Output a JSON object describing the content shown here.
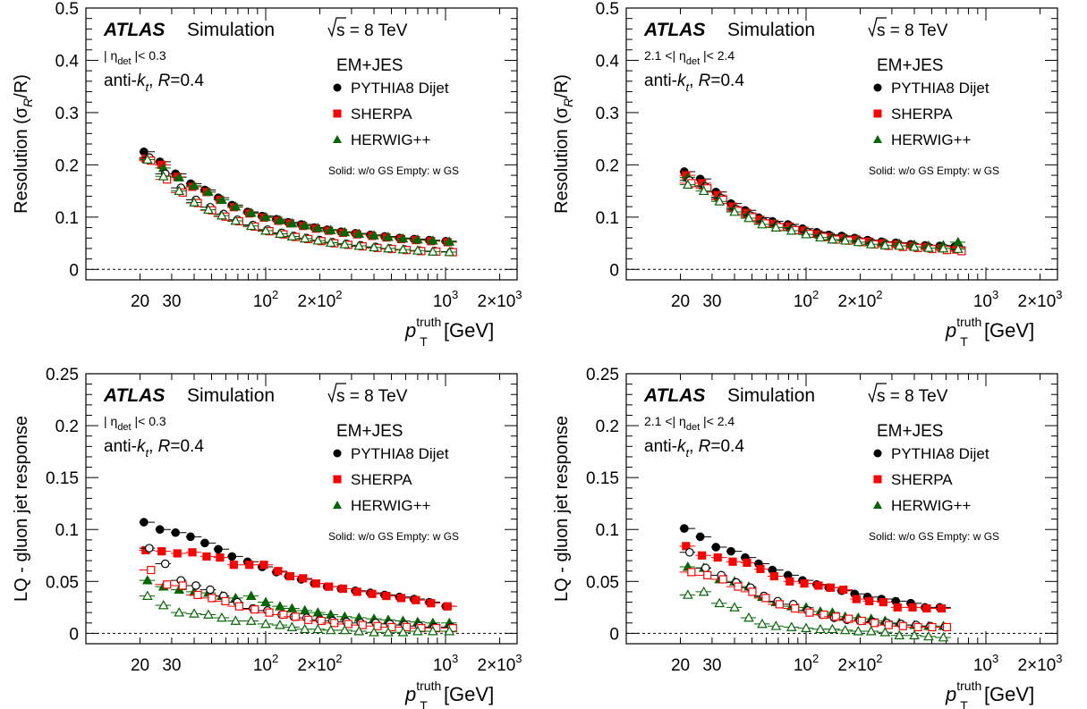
{
  "labels": {
    "atlas": "ATLAS",
    "simulation": "Simulation",
    "sqrt_s": "s = 8 TeV",
    "calib": "EM+JES",
    "jet_def_pre": "anti-k",
    "jet_def_sub": "t",
    "jet_def_post": ", R=0.4",
    "x_title": "p",
    "x_title_sup": "truth",
    "x_title_sub": "T",
    "x_title_unit": " [GeV]",
    "legend_note": "Solid: w/o GS  Empty: w GS",
    "eta_central_pre": "| η",
    "eta_central_sub": "det",
    "eta_central_post": " |< 0.3",
    "eta_forward_pre": "2.1 <| η",
    "eta_forward_sub": "det",
    "eta_forward_post": " |< 2.4",
    "y_title_resolution": "Resolution (σ",
    "y_title_resolution_sub": "R",
    "y_title_resolution_post": "/R)",
    "y_title_response": "LQ - gluon jet response"
  },
  "legend": [
    {
      "name": "PYTHIA8 Dijet",
      "color": "#000000",
      "marker": "circle"
    },
    {
      "name": "SHERPA",
      "color": "#ff0000",
      "marker": "square"
    },
    {
      "name": "HERWIG++",
      "color": "#006600",
      "marker": "triangle"
    }
  ],
  "x_ticks": [
    {
      "value": 20,
      "label": "20"
    },
    {
      "value": 30,
      "label": "30"
    },
    {
      "value": 100,
      "label": "10",
      "sup": "2"
    },
    {
      "value": 200,
      "label": "2×10",
      "sup": "2"
    },
    {
      "value": 1000,
      "label": "10",
      "sup": "3"
    },
    {
      "value": 2000,
      "label": "2×10",
      "sup": "3"
    }
  ],
  "chart_data": [
    {
      "type": "scatter",
      "panel": "top-left",
      "x_scale": "log",
      "xlim": [
        10,
        2500
      ],
      "ylim": [
        -0.02,
        0.5
      ],
      "y_ticks": [
        0,
        0.1,
        0.2,
        0.3,
        0.4,
        0.5
      ],
      "y_tick_labels": [
        "0",
        "0.1",
        "0.2",
        "0.3",
        "0.4",
        "0.5"
      ],
      "eta_region": "central",
      "y_title": "resolution",
      "x": [
        22,
        27,
        33,
        40,
        48,
        57,
        68,
        83,
        100,
        120,
        140,
        165,
        195,
        230,
        275,
        330,
        400,
        480,
        580,
        700,
        850,
        1050
      ],
      "series": [
        {
          "name": "PYTHIA8 Dijet w/o GS",
          "fill": "solid",
          "values": [
            0.225,
            0.206,
            0.183,
            0.164,
            0.152,
            0.137,
            0.123,
            0.11,
            0.102,
            0.096,
            0.09,
            0.086,
            0.08,
            0.076,
            0.072,
            0.069,
            0.066,
            0.063,
            0.06,
            0.058,
            0.056,
            0.054
          ]
        },
        {
          "name": "SHERPA w/o GS",
          "fill": "solid",
          "values": [
            0.212,
            0.2,
            0.177,
            0.158,
            0.148,
            0.133,
            0.119,
            0.107,
            0.099,
            0.093,
            0.088,
            0.083,
            0.078,
            0.074,
            0.07,
            0.067,
            0.064,
            0.061,
            0.058,
            0.056,
            0.054,
            0.052
          ]
        },
        {
          "name": "HERWIG++ w/o GS",
          "fill": "solid",
          "values": [
            0.21,
            0.194,
            0.176,
            0.16,
            0.148,
            0.133,
            0.12,
            0.108,
            0.1,
            0.094,
            0.088,
            0.084,
            0.079,
            0.075,
            0.071,
            0.068,
            0.065,
            0.062,
            0.059,
            0.057,
            0.055,
            0.053
          ]
        },
        {
          "name": "PYTHIA8 Dijet w GS",
          "fill": "empty",
          "values": [
            0.214,
            0.183,
            0.156,
            0.133,
            0.119,
            0.106,
            0.095,
            0.085,
            0.076,
            0.07,
            0.064,
            0.06,
            0.056,
            0.052,
            0.049,
            0.046,
            0.043,
            0.04,
            0.038,
            0.036,
            0.035,
            0.034
          ]
        },
        {
          "name": "SHERPA w GS",
          "fill": "empty",
          "values": [
            0.208,
            0.172,
            0.147,
            0.127,
            0.113,
            0.101,
            0.092,
            0.082,
            0.073,
            0.067,
            0.062,
            0.058,
            0.054,
            0.05,
            0.047,
            0.044,
            0.041,
            0.039,
            0.037,
            0.035,
            0.034,
            0.033
          ]
        },
        {
          "name": "HERWIG++ w GS",
          "fill": "empty",
          "values": [
            0.21,
            0.178,
            0.15,
            0.128,
            0.114,
            0.103,
            0.093,
            0.083,
            0.074,
            0.068,
            0.063,
            0.059,
            0.055,
            0.051,
            0.048,
            0.045,
            0.042,
            0.04,
            0.038,
            0.036,
            0.034,
            0.033
          ]
        }
      ]
    },
    {
      "type": "scatter",
      "panel": "top-right",
      "x_scale": "log",
      "xlim": [
        10,
        2500
      ],
      "ylim": [
        -0.02,
        0.5
      ],
      "y_ticks": [
        0,
        0.1,
        0.2,
        0.3,
        0.4,
        0.5
      ],
      "y_tick_labels": [
        "0",
        "0.1",
        "0.2",
        "0.3",
        "0.4",
        "0.5"
      ],
      "eta_region": "forward",
      "y_title": "resolution",
      "x": [
        22,
        27,
        33,
        40,
        48,
        57,
        68,
        83,
        100,
        120,
        140,
        165,
        195,
        230,
        275,
        330,
        400,
        480,
        580,
        700
      ],
      "series": [
        {
          "name": "PYTHIA8 Dijet w/o GS",
          "fill": "solid",
          "values": [
            0.187,
            0.173,
            0.148,
            0.126,
            0.113,
            0.099,
            0.092,
            0.086,
            0.078,
            0.071,
            0.066,
            0.064,
            0.06,
            0.056,
            0.053,
            0.051,
            0.048,
            0.046,
            0.045,
            0.043
          ]
        },
        {
          "name": "SHERPA w/o GS",
          "fill": "solid",
          "values": [
            0.18,
            0.165,
            0.142,
            0.12,
            0.108,
            0.095,
            0.087,
            0.082,
            0.074,
            0.067,
            0.062,
            0.06,
            0.057,
            0.053,
            0.05,
            0.048,
            0.045,
            0.043,
            0.041,
            0.038
          ]
        },
        {
          "name": "HERWIG++ w/o GS",
          "fill": "solid",
          "values": [
            0.176,
            0.16,
            0.138,
            0.117,
            0.106,
            0.093,
            0.086,
            0.08,
            0.072,
            0.066,
            0.062,
            0.06,
            0.056,
            0.052,
            0.05,
            0.049,
            0.047,
            0.045,
            0.046,
            0.052
          ]
        },
        {
          "name": "PYTHIA8 Dijet w GS",
          "fill": "empty",
          "values": [
            0.17,
            0.158,
            0.136,
            0.115,
            0.103,
            0.091,
            0.084,
            0.078,
            0.071,
            0.064,
            0.059,
            0.057,
            0.054,
            0.05,
            0.047,
            0.045,
            0.043,
            0.041,
            0.04,
            0.038
          ]
        },
        {
          "name": "SHERPA w GS",
          "fill": "empty",
          "values": [
            0.165,
            0.155,
            0.133,
            0.112,
            0.1,
            0.088,
            0.081,
            0.075,
            0.068,
            0.062,
            0.057,
            0.055,
            0.052,
            0.048,
            0.045,
            0.043,
            0.041,
            0.039,
            0.037,
            0.035
          ]
        },
        {
          "name": "HERWIG++ w GS",
          "fill": "empty",
          "values": [
            0.162,
            0.15,
            0.13,
            0.11,
            0.098,
            0.086,
            0.08,
            0.074,
            0.067,
            0.061,
            0.057,
            0.055,
            0.052,
            0.048,
            0.046,
            0.045,
            0.043,
            0.041,
            0.04,
            0.039
          ]
        }
      ]
    },
    {
      "type": "scatter",
      "panel": "bottom-left",
      "x_scale": "log",
      "xlim": [
        10,
        2500
      ],
      "ylim": [
        -0.01,
        0.25
      ],
      "y_ticks": [
        0,
        0.05,
        0.1,
        0.15,
        0.2,
        0.25
      ],
      "y_tick_labels": [
        "0",
        "0.05",
        "0.1",
        "0.15",
        "0.2",
        "0.25"
      ],
      "eta_region": "central",
      "y_title": "response",
      "x": [
        22,
        27,
        33,
        40,
        48,
        57,
        68,
        83,
        100,
        120,
        140,
        165,
        195,
        230,
        275,
        330,
        400,
        480,
        580,
        700,
        850,
        1050
      ],
      "series": [
        {
          "name": "PYTHIA8 Dijet w/o GS",
          "fill": "solid",
          "values": [
            0.107,
            0.1,
            0.097,
            0.093,
            0.087,
            0.081,
            0.074,
            0.069,
            0.064,
            0.059,
            0.055,
            0.052,
            0.048,
            0.045,
            0.043,
            0.041,
            0.039,
            0.037,
            0.035,
            0.033,
            0.03,
            0.026
          ]
        },
        {
          "name": "SHERPA w/o GS",
          "fill": "solid",
          "values": [
            0.08,
            0.079,
            0.077,
            0.078,
            0.074,
            0.073,
            0.066,
            0.066,
            0.066,
            0.06,
            0.055,
            0.053,
            0.048,
            0.045,
            0.043,
            0.04,
            0.038,
            0.036,
            0.034,
            0.032,
            0.029,
            0.026
          ]
        },
        {
          "name": "HERWIG++ w/o GS",
          "fill": "solid",
          "values": [
            0.051,
            0.045,
            0.042,
            0.04,
            0.039,
            0.036,
            0.034,
            0.036,
            0.03,
            0.026,
            0.024,
            0.022,
            0.02,
            0.018,
            0.016,
            0.015,
            0.014,
            0.013,
            0.012,
            0.011,
            0.01,
            0.01
          ]
        },
        {
          "name": "PYTHIA8 Dijet w GS",
          "fill": "empty",
          "values": [
            0.082,
            0.067,
            0.051,
            0.046,
            0.042,
            0.036,
            0.03,
            0.024,
            0.022,
            0.018,
            0.016,
            0.015,
            0.013,
            0.012,
            0.011,
            0.01,
            0.01,
            0.009,
            0.008,
            0.007,
            0.006,
            0.006
          ]
        },
        {
          "name": "SHERPA w GS",
          "fill": "empty",
          "values": [
            0.061,
            0.047,
            0.046,
            0.037,
            0.034,
            0.031,
            0.026,
            0.023,
            0.02,
            0.018,
            0.016,
            0.013,
            0.012,
            0.01,
            0.009,
            0.008,
            0.007,
            0.006,
            0.006,
            0.005,
            0.005,
            0.005
          ]
        },
        {
          "name": "HERWIG++ w GS",
          "fill": "empty",
          "values": [
            0.036,
            0.027,
            0.02,
            0.019,
            0.018,
            0.015,
            0.012,
            0.012,
            0.009,
            0.008,
            0.006,
            0.004,
            0.004,
            0.003,
            0.003,
            0.002,
            0.001,
            0.001,
            0.001,
            0.002,
            0.002,
            0.002
          ]
        }
      ]
    },
    {
      "type": "scatter",
      "panel": "bottom-right",
      "x_scale": "log",
      "xlim": [
        10,
        2500
      ],
      "ylim": [
        -0.01,
        0.25
      ],
      "y_ticks": [
        0,
        0.05,
        0.1,
        0.15,
        0.2,
        0.25
      ],
      "y_tick_labels": [
        "0",
        "0.05",
        "0.1",
        "0.15",
        "0.2",
        "0.25"
      ],
      "eta_region": "forward",
      "y_title": "response",
      "x": [
        22,
        27,
        33,
        40,
        48,
        57,
        68,
        83,
        100,
        120,
        140,
        165,
        195,
        230,
        275,
        330,
        400,
        480,
        580
      ],
      "series": [
        {
          "name": "PYTHIA8 Dijet w/o GS",
          "fill": "solid",
          "values": [
            0.101,
            0.093,
            0.083,
            0.079,
            0.073,
            0.067,
            0.061,
            0.056,
            0.051,
            0.047,
            0.044,
            0.041,
            0.038,
            0.035,
            0.033,
            0.031,
            0.029,
            0.025,
            0.025
          ]
        },
        {
          "name": "SHERPA w/o GS",
          "fill": "solid",
          "values": [
            0.084,
            0.075,
            0.073,
            0.069,
            0.068,
            0.062,
            0.055,
            0.05,
            0.048,
            0.046,
            0.044,
            0.042,
            0.033,
            0.031,
            0.03,
            0.025,
            0.025,
            0.024,
            0.024
          ]
        },
        {
          "name": "HERWIG++ w/o GS",
          "fill": "solid",
          "values": [
            0.064,
            0.063,
            0.052,
            0.05,
            0.045,
            0.035,
            0.03,
            0.026,
            0.025,
            0.021,
            0.02,
            0.016,
            0.015,
            0.014,
            0.012,
            0.01,
            0.008,
            0.007,
            0.007
          ]
        },
        {
          "name": "PYTHIA8 Dijet w GS",
          "fill": "empty",
          "values": [
            0.078,
            0.063,
            0.056,
            0.049,
            0.044,
            0.036,
            0.031,
            0.028,
            0.022,
            0.018,
            0.015,
            0.013,
            0.012,
            0.011,
            0.01,
            0.009,
            0.008,
            0.007,
            0.006
          ]
        },
        {
          "name": "SHERPA w GS",
          "fill": "empty",
          "values": [
            0.059,
            0.056,
            0.052,
            0.045,
            0.04,
            0.034,
            0.028,
            0.024,
            0.02,
            0.018,
            0.016,
            0.014,
            0.012,
            0.01,
            0.008,
            0.007,
            0.006,
            0.006,
            0.006
          ]
        },
        {
          "name": "HERWIG++ w GS",
          "fill": "empty",
          "values": [
            0.037,
            0.04,
            0.029,
            0.025,
            0.015,
            0.009,
            0.007,
            0.006,
            0.005,
            0.004,
            0.004,
            0.003,
            0.002,
            0.002,
            0.001,
            -0.002,
            -0.002,
            -0.003,
            -0.004
          ]
        }
      ]
    }
  ]
}
